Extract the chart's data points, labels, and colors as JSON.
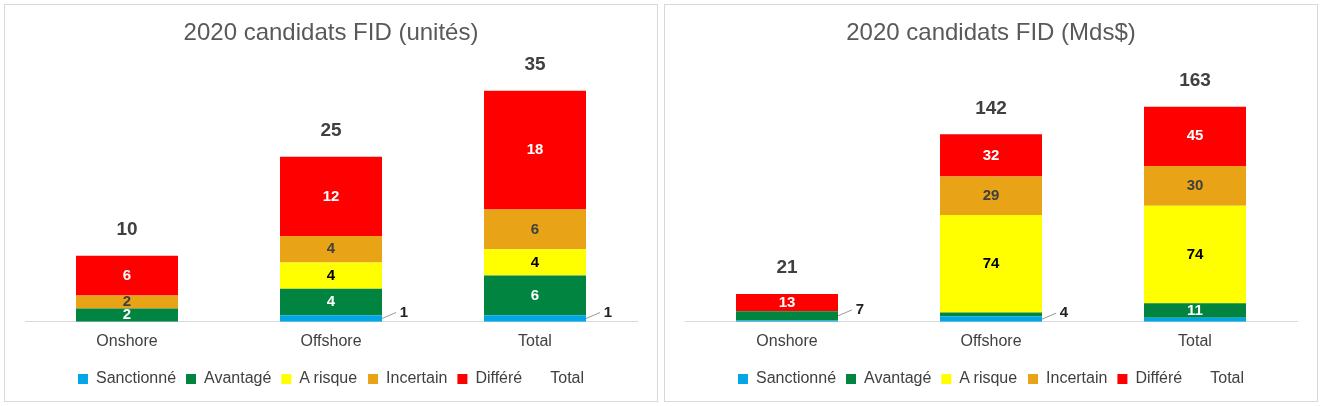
{
  "chart_data": [
    {
      "type": "bar",
      "title": "2020 candidats FID (unités)",
      "stacked": true,
      "legend": "bottom",
      "grid": false,
      "categories": [
        "Onshore",
        "Offshore",
        "Total"
      ],
      "series": [
        {
          "name": "Sanctionné",
          "color": "#00a6e6",
          "values": [
            0,
            1,
            1
          ],
          "value_labels": [
            null,
            "1",
            "1"
          ]
        },
        {
          "name": "Avantagé",
          "color": "#00843f",
          "values": [
            2,
            4,
            6
          ],
          "value_labels": [
            "2",
            "4",
            "6"
          ]
        },
        {
          "name": "A risque",
          "color": "#ffff00",
          "values": [
            0,
            4,
            4
          ],
          "value_labels": [
            null,
            "4",
            "4"
          ]
        },
        {
          "name": "Incertain",
          "color": "#e8a317",
          "values": [
            2,
            4,
            6
          ],
          "value_labels": [
            "2",
            "4",
            "6"
          ]
        },
        {
          "name": "Différé",
          "color": "#ff0000",
          "values": [
            6,
            12,
            18
          ],
          "value_labels": [
            "6",
            "12",
            "18"
          ]
        },
        {
          "name": "Total",
          "values": [
            null,
            null,
            null
          ]
        }
      ],
      "totals": [
        "10",
        "25",
        "35"
      ]
    },
    {
      "type": "bar",
      "title": "2020 candidats FID (Mds$)",
      "stacked": true,
      "legend": "bottom",
      "grid": false,
      "categories": [
        "Onshore",
        "Offshore",
        "Total"
      ],
      "series": [
        {
          "name": "Sanctionné",
          "color": "#00a6e6",
          "values": [
            1,
            4,
            3
          ],
          "value_labels": [
            null,
            "4",
            null
          ]
        },
        {
          "name": "Avantagé",
          "color": "#00843f",
          "values": [
            7,
            3,
            11
          ],
          "value_labels": [
            "7",
            null,
            "11"
          ]
        },
        {
          "name": "A risque",
          "color": "#ffff00",
          "values": [
            0,
            74,
            74
          ],
          "value_labels": [
            null,
            "74",
            "74"
          ]
        },
        {
          "name": "Incertain",
          "color": "#e8a317",
          "values": [
            0,
            29,
            30
          ],
          "value_labels": [
            null,
            "29",
            "30"
          ]
        },
        {
          "name": "Différé",
          "color": "#ff0000",
          "values": [
            13,
            32,
            45
          ],
          "value_labels": [
            "13",
            "32",
            "45"
          ]
        },
        {
          "name": "Total",
          "values": [
            null,
            null,
            null
          ]
        }
      ],
      "totals": [
        "21",
        "142",
        "163"
      ]
    }
  ]
}
